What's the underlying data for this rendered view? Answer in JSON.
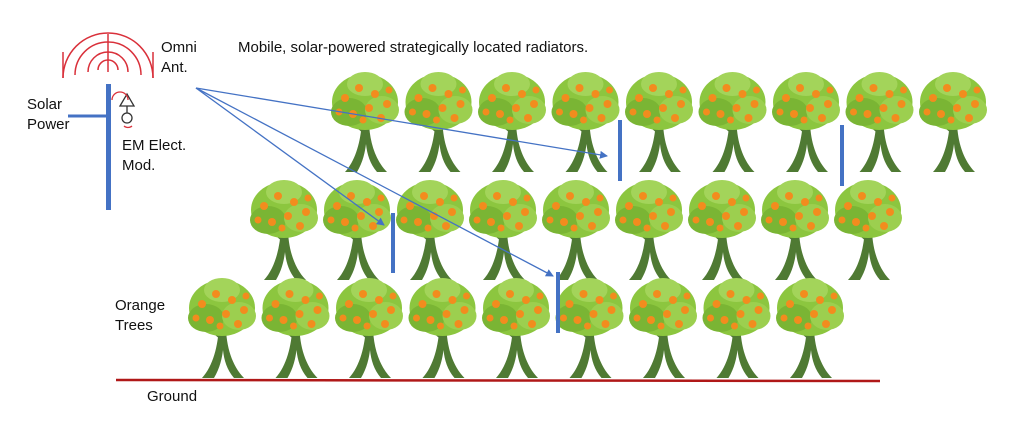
{
  "labels": {
    "title": "Mobile, solar-powered strategically located radiators.",
    "omni_antenna": "Omni\nAnt.",
    "solar_power": "Solar\nPower",
    "em_module": "EM Elect.\nMod.",
    "orange_trees": "Orange\nTrees",
    "ground": "Ground"
  },
  "colors": {
    "antenna_waves": "#d9303a",
    "mast": "#4472c4",
    "links": "#4472c4",
    "ground": "#b01818",
    "trunk": "#4f7a33",
    "foliage": "#8cc63f",
    "fruit": "#f28c1e"
  },
  "tree_rows": [
    {
      "name": "back-row",
      "count": 9
    },
    {
      "name": "middle-row",
      "count": 9
    },
    {
      "name": "front-row",
      "count": 9
    }
  ],
  "radiators": 4
}
